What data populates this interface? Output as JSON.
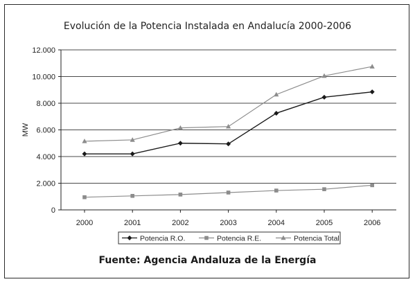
{
  "chart_data": {
    "type": "line",
    "title": "Evolución de la Potencia Instalada en Andalucía 2000-2006",
    "xlabel": "",
    "ylabel": "MW",
    "categories": [
      "2000",
      "2001",
      "2002",
      "2003",
      "2004",
      "2005",
      "2006"
    ],
    "ylim": [
      0,
      12000
    ],
    "yticks": [
      0,
      2000,
      4000,
      6000,
      8000,
      10000,
      12000
    ],
    "ytick_labels": [
      "0",
      "2.000",
      "4.000",
      "6.000",
      "8.000",
      "10.000",
      "12.000"
    ],
    "grid": "horizontal",
    "legend_position": "bottom",
    "series": [
      {
        "name": "Potencia R.O.",
        "marker": "diamond",
        "color": "#1a1a1a",
        "values": [
          4200,
          4200,
          5000,
          4950,
          7250,
          8450,
          8850
        ]
      },
      {
        "name": "Potencia R.E.",
        "marker": "square",
        "color": "#8c8c8c",
        "values": [
          950,
          1050,
          1150,
          1300,
          1450,
          1550,
          1850
        ]
      },
      {
        "name": "Potencia Total",
        "marker": "triangle",
        "color": "#8c8c8c",
        "values": [
          5150,
          5250,
          6150,
          6250,
          8650,
          10050,
          10750
        ]
      }
    ]
  },
  "source": "Fuente: Agencia Andaluza de la Energía"
}
